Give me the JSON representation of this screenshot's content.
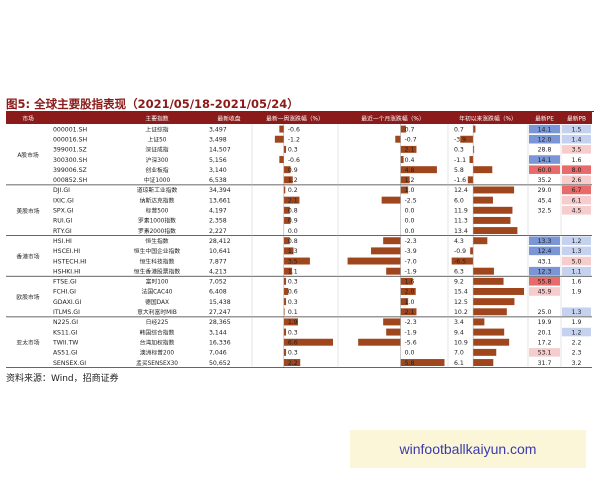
{
  "title": "图5: 全球主要股指表现（2021/05/18-2021/05/24）",
  "source": "资料来源：Wind，招商证券",
  "watermark": "winfootballkaiyun.com",
  "colors": {
    "header_bg": "#8b1a1a",
    "bar": "#a0461c",
    "pe_blue_strong": "#7b96d6",
    "pe_blue_light": "#c5d2ef",
    "pe_red_strong": "#e86a6a",
    "pe_red_light": "#f6cccc"
  },
  "chart_data": {
    "type": "table",
    "columns": [
      "市场",
      "主要指数",
      "",
      "最新收盘",
      "最新一周涨跌幅（%）",
      "最近一个月涨跌幅（%）",
      "年初以来涨跌幅（%）",
      "最新PE",
      "最新PB"
    ],
    "groups": [
      {
        "market": "A股市场",
        "rows": [
          {
            "code": "000001.SH",
            "name": "上证综指",
            "close": "3,497",
            "week": -0.6,
            "month": 0.7,
            "ytd": 0.7,
            "pe": 14.1,
            "pb": 1.5,
            "pe_tone": "blue-strong",
            "pb_tone": "blue-light"
          },
          {
            "code": "000016.SH",
            "name": "上证50",
            "close": "3,498",
            "week": -1.2,
            "month": -0.7,
            "ytd": -3.9,
            "pe": 12.0,
            "pb": 1.4,
            "pe_tone": "blue-strong",
            "pb_tone": "blue-light"
          },
          {
            "code": "399001.SZ",
            "name": "深证成指",
            "close": "14,507",
            "week": 0.3,
            "month": 2.1,
            "ytd": 0.3,
            "pe": 28.8,
            "pb": 3.5,
            "pe_tone": "none",
            "pb_tone": "red-light"
          },
          {
            "code": "300300.SH",
            "name": "沪深300",
            "close": "5,156",
            "week": -0.6,
            "month": 0.4,
            "ytd": -1.1,
            "pe": 14.1,
            "pb": 1.6,
            "pe_tone": "blue-strong",
            "pb_tone": "none"
          },
          {
            "code": "399006.SZ",
            "name": "创业板指",
            "close": "3,140",
            "week": 0.9,
            "month": 4.8,
            "ytd": 5.8,
            "pe": 60.0,
            "pb": 8.0,
            "pe_tone": "red-strong",
            "pb_tone": "red-strong"
          },
          {
            "code": "000852.SH",
            "name": "中证1000",
            "close": "6,538",
            "week": 1.2,
            "month": 1.2,
            "ytd": -1.6,
            "pe": 35.2,
            "pb": 2.6,
            "pe_tone": "none",
            "pb_tone": "red-light"
          }
        ]
      },
      {
        "market": "美股市场",
        "rows": [
          {
            "code": "DJI.GI",
            "name": "道琼斯工业指数",
            "close": "34,394",
            "week": 0.2,
            "month": 1.0,
            "ytd": 12.4,
            "pe": 29.0,
            "pb": 6.7,
            "pe_tone": "none",
            "pb_tone": "red-strong"
          },
          {
            "code": "IXIC.GI",
            "name": "纳斯达克指数",
            "close": "13,661",
            "week": 2.1,
            "month": -2.5,
            "ytd": 6.0,
            "pe": 45.4,
            "pb": 6.1,
            "pe_tone": "none",
            "pb_tone": "red-light"
          },
          {
            "code": "SPX.GI",
            "name": "标普500",
            "close": "4,197",
            "week": 0.8,
            "month": 0.0,
            "ytd": 11.9,
            "pe": 32.5,
            "pb": 4.5,
            "pe_tone": "none",
            "pb_tone": "red-light"
          },
          {
            "code": "RUI.GI",
            "name": "罗素1000指数",
            "close": "2,358",
            "week": 0.9,
            "month": 0.0,
            "ytd": 11.3,
            "pe": null,
            "pb": null,
            "pe_tone": "none",
            "pb_tone": "none"
          },
          {
            "code": "RTY.GI",
            "name": "罗素2000指数",
            "close": "2,227",
            "week": 0.0,
            "month": 0.0,
            "ytd": 13.4,
            "pe": null,
            "pb": null,
            "pe_tone": "none",
            "pb_tone": "none"
          }
        ]
      },
      {
        "market": "香港市场",
        "rows": [
          {
            "code": "HSI.HI",
            "name": "恒生指数",
            "close": "28,412",
            "week": 0.8,
            "month": -2.3,
            "ytd": 4.3,
            "pe": 13.3,
            "pb": 1.2,
            "pe_tone": "blue-strong",
            "pb_tone": "blue-light"
          },
          {
            "code": "HSCEI.HI",
            "name": "恒生中国企业指数",
            "close": "10,641",
            "week": 1.3,
            "month": -3.9,
            "ytd": -0.9,
            "pe": 12.4,
            "pb": 1.3,
            "pe_tone": "blue-strong",
            "pb_tone": "blue-light"
          },
          {
            "code": "HSTECH.HI",
            "name": "恒生科技指数",
            "close": "7,877",
            "week": 3.5,
            "month": -7.0,
            "ytd": -6.5,
            "pe": 43.1,
            "pb": 5.0,
            "pe_tone": "none",
            "pb_tone": "red-light"
          },
          {
            "code": "HSHKI.HI",
            "name": "恒生香港股票指数",
            "close": "4,213",
            "week": 1.1,
            "month": -1.9,
            "ytd": 6.3,
            "pe": 12.3,
            "pb": 1.1,
            "pe_tone": "blue-strong",
            "pb_tone": "blue-light"
          }
        ]
      },
      {
        "market": "欧股市场",
        "rows": [
          {
            "code": "FTSE.GI",
            "name": "富时100",
            "close": "7,052",
            "week": 0.3,
            "month": 1.6,
            "ytd": 9.2,
            "pe": 55.8,
            "pb": 1.6,
            "pe_tone": "red-strong",
            "pb_tone": "none"
          },
          {
            "code": "FCHI.GI",
            "name": "法国CAC40",
            "close": "6,408",
            "week": 0.6,
            "month": 2.0,
            "ytd": 15.4,
            "pe": 45.9,
            "pb": 1.9,
            "pe_tone": "red-light",
            "pb_tone": "none"
          },
          {
            "code": "GDAXI.GI",
            "name": "德国DAX",
            "close": "15,438",
            "week": 0.3,
            "month": 1.0,
            "ytd": 12.5,
            "pe": null,
            "pb": null,
            "pe_tone": "none",
            "pb_tone": "none"
          },
          {
            "code": "ITLMS.GI",
            "name": "意大利富时MIB",
            "close": "27,247",
            "week": 0.1,
            "month": 2.1,
            "ytd": 10.2,
            "pe": 25.0,
            "pb": 1.3,
            "pe_tone": "none",
            "pb_tone": "blue-light"
          }
        ]
      },
      {
        "market": "亚太市场",
        "rows": [
          {
            "code": "N225.GI",
            "name": "日经225",
            "close": "28,365",
            "week": 1.9,
            "month": -2.3,
            "ytd": 3.4,
            "pe": 19.9,
            "pb": 1.9,
            "pe_tone": "none",
            "pb_tone": "none"
          },
          {
            "code": "KS11.GI",
            "name": "韩国综合指数",
            "close": "3,144",
            "week": 0.3,
            "month": -1.9,
            "ytd": 9.4,
            "pe": 20.1,
            "pb": 1.2,
            "pe_tone": "none",
            "pb_tone": "blue-light"
          },
          {
            "code": "TWII.TW",
            "name": "台湾加权指数",
            "close": "16,336",
            "week": 6.6,
            "month": -5.6,
            "ytd": 10.9,
            "pe": 17.2,
            "pb": 2.2,
            "pe_tone": "none",
            "pb_tone": "none"
          },
          {
            "code": "AS51.GI",
            "name": "澳洲标普200",
            "close": "7,046",
            "week": 0.3,
            "month": 0.0,
            "ytd": 7.0,
            "pe": 53.1,
            "pb": 2.3,
            "pe_tone": "red-light",
            "pb_tone": "none"
          },
          {
            "code": "SENSEX.GI",
            "name": "孟买SENSEX30",
            "close": "50,652",
            "week": 2.2,
            "month": 5.8,
            "ytd": 6.1,
            "pe": 31.7,
            "pb": 3.2,
            "pe_tone": "none",
            "pb_tone": "none"
          }
        ]
      }
    ],
    "ranges": {
      "week": [
        -4,
        7
      ],
      "month": [
        -8,
        6
      ],
      "ytd": [
        -7,
        16
      ]
    }
  }
}
